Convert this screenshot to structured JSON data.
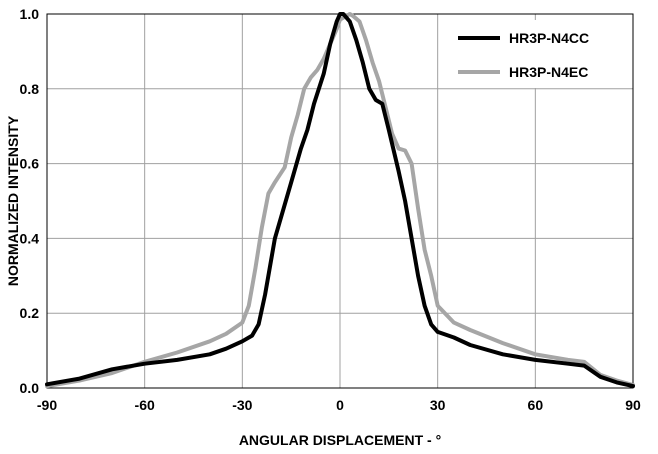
{
  "chart_data": {
    "type": "line",
    "title": "",
    "xlabel": "ANGULAR DISPLACEMENT - °",
    "ylabel": "NORMALIZED INTENSITY",
    "xlim": [
      -90,
      90
    ],
    "ylim": [
      0.0,
      1.0
    ],
    "xticks": [
      -90,
      -60,
      -30,
      0,
      30,
      60,
      90
    ],
    "xtick_labels": [
      "-90",
      "-60",
      "-30",
      "0",
      "30",
      "60",
      "90"
    ],
    "yticks": [
      0.0,
      0.2,
      0.4,
      0.6,
      0.8,
      1.0
    ],
    "ytick_labels": [
      "0.0",
      "0.2",
      "0.4",
      "0.6",
      "0.8",
      "1.0"
    ],
    "grid": true,
    "legend_position": "top-right",
    "series": [
      {
        "name": "HR3P-N4CC",
        "color": "#000000",
        "x": [
          -90,
          -80,
          -70,
          -60,
          -50,
          -40,
          -35,
          -30,
          -27,
          -25,
          -23,
          -20,
          -17,
          -15,
          -12,
          -10,
          -8,
          -5,
          -3,
          -1,
          0,
          1,
          2,
          3,
          5,
          7,
          9,
          11,
          13,
          15,
          18,
          20,
          22,
          24,
          26,
          28,
          30,
          35,
          40,
          50,
          60,
          70,
          75,
          80,
          85,
          90
        ],
        "y": [
          0.01,
          0.025,
          0.05,
          0.065,
          0.075,
          0.09,
          0.105,
          0.125,
          0.14,
          0.17,
          0.25,
          0.4,
          0.49,
          0.55,
          0.64,
          0.69,
          0.76,
          0.84,
          0.92,
          0.98,
          1.0,
          1.0,
          0.99,
          0.98,
          0.93,
          0.87,
          0.8,
          0.77,
          0.76,
          0.69,
          0.58,
          0.5,
          0.4,
          0.3,
          0.22,
          0.17,
          0.15,
          0.135,
          0.115,
          0.09,
          0.075,
          0.065,
          0.06,
          0.03,
          0.015,
          0.005
        ]
      },
      {
        "name": "HR3P-N4EC",
        "color": "#a6a6a6",
        "x": [
          -90,
          -80,
          -70,
          -60,
          -50,
          -40,
          -35,
          -30,
          -28,
          -26,
          -24,
          -22,
          -20,
          -17,
          -15,
          -13,
          -11,
          -9,
          -7,
          -5,
          -3,
          -1,
          0,
          2,
          3,
          4,
          6,
          8,
          10,
          12,
          14,
          16,
          18,
          20,
          22,
          24,
          26,
          28,
          30,
          35,
          40,
          50,
          60,
          70,
          75,
          80,
          85,
          90
        ],
        "y": [
          0.005,
          0.02,
          0.04,
          0.07,
          0.095,
          0.125,
          0.145,
          0.175,
          0.22,
          0.32,
          0.43,
          0.52,
          0.55,
          0.59,
          0.67,
          0.73,
          0.8,
          0.83,
          0.85,
          0.88,
          0.92,
          0.96,
          0.985,
          0.995,
          1.0,
          0.995,
          0.98,
          0.93,
          0.87,
          0.82,
          0.75,
          0.68,
          0.64,
          0.635,
          0.6,
          0.48,
          0.37,
          0.3,
          0.22,
          0.175,
          0.155,
          0.12,
          0.09,
          0.075,
          0.07,
          0.035,
          0.02,
          0.008
        ]
      }
    ]
  }
}
